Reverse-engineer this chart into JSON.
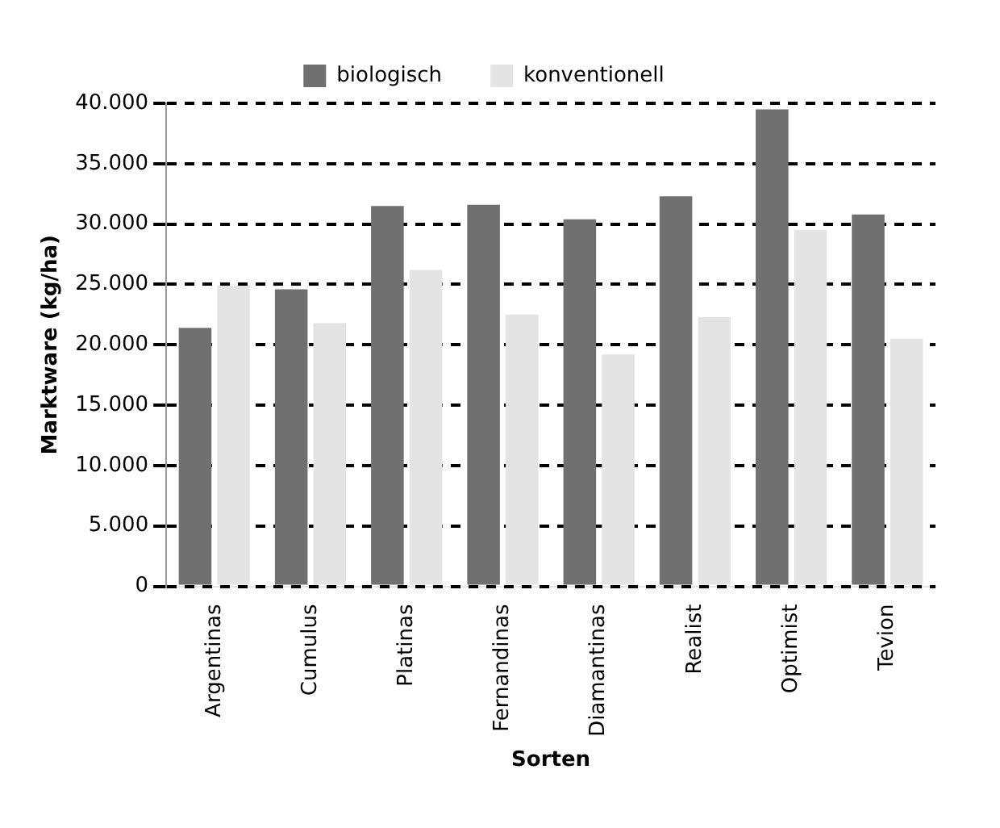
{
  "chart_data": {
    "type": "bar",
    "xlabel": "Sorten",
    "ylabel": "Marktware (kg/ha)",
    "categories": [
      "Argentinas",
      "Cumulus",
      "Platinas",
      "Fernandinas",
      "Diamantinas",
      "Realist",
      "Optimist",
      "Tevion"
    ],
    "series": [
      {
        "name": "biologisch",
        "color": "#707070",
        "values": [
          21400,
          24600,
          31500,
          31600,
          30400,
          32300,
          39500,
          30800
        ]
      },
      {
        "name": "konventionell",
        "color": "#e4e4e4",
        "values": [
          24900,
          21800,
          26200,
          22500,
          19200,
          22300,
          29500,
          20500
        ]
      }
    ],
    "ylim": [
      0,
      40000
    ],
    "yticks": [
      {
        "value": 0,
        "label": "0"
      },
      {
        "value": 5000,
        "label": "5.000"
      },
      {
        "value": 10000,
        "label": "10.000"
      },
      {
        "value": 15000,
        "label": "15.000"
      },
      {
        "value": 20000,
        "label": "20.000"
      },
      {
        "value": 25000,
        "label": "25.000"
      },
      {
        "value": 30000,
        "label": "30.000"
      },
      {
        "value": 35000,
        "label": "35.000"
      },
      {
        "value": 40000,
        "label": "40.000"
      }
    ],
    "grid": "y",
    "legend": "top"
  }
}
